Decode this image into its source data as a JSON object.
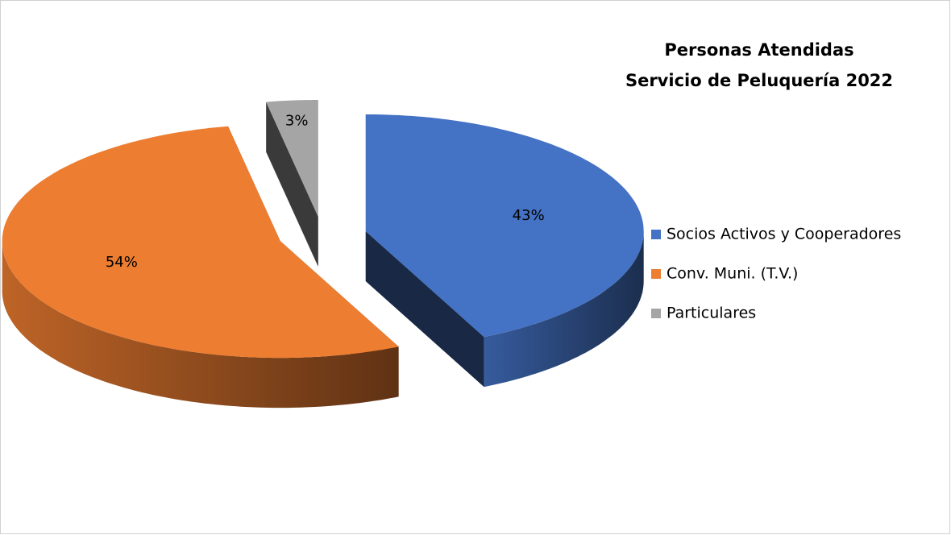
{
  "chart_data": {
    "type": "pie",
    "title": "Personas Atendidas",
    "subtitle": "Servicio de Peluquería 2022",
    "categories": [
      "Socios Activos y Cooperadores",
      "Conv. Muni. (T.V.)",
      "Particulares"
    ],
    "values": [
      43,
      54,
      3
    ],
    "value_labels": [
      "43%",
      "54%",
      "3%"
    ],
    "colors": [
      "#4472c4",
      "#ed7d31",
      "#a5a5a5"
    ],
    "legend": "right"
  }
}
